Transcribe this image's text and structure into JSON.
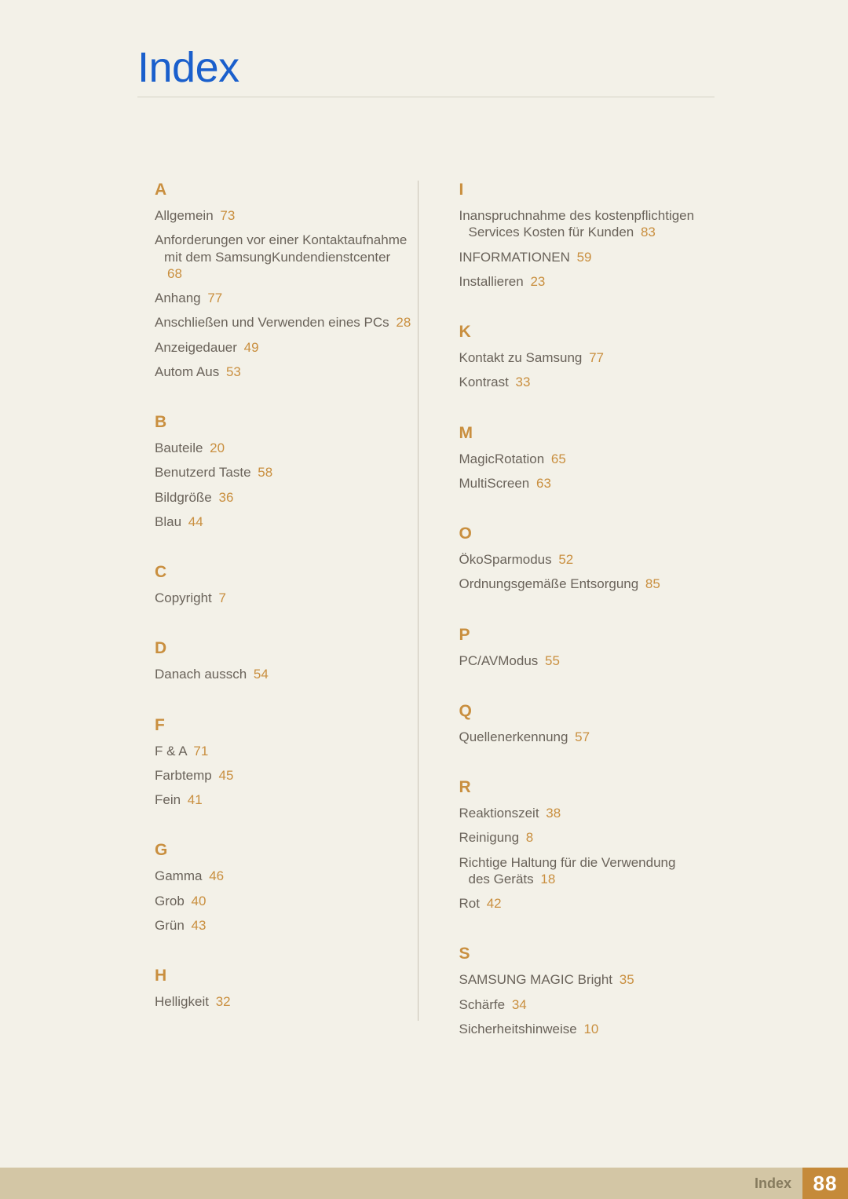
{
  "title": "Index",
  "title_color": "#1a5fcc",
  "letter_color": "#c98f3f",
  "page_ref_color": "#c98f3f",
  "body_text_color": "#6a635a",
  "background_color": "#f3f1e8",
  "rule_color": "#d6d2c5",
  "footer": {
    "label": "Index",
    "page": "88",
    "bar_color": "#d3c6a5",
    "box_color": "#c58a3a"
  },
  "columns": {
    "left": [
      {
        "letter": "A",
        "entries": [
          {
            "text": "Allgemein",
            "page": "73"
          },
          {
            "text": "Anforderungen vor einer Kontaktaufnahme mit dem SamsungKundendienstcenter",
            "page": "68",
            "hanging": true
          },
          {
            "text": "Anhang",
            "page": "77"
          },
          {
            "text": "Anschließen und Verwenden eines PCs",
            "page": "28"
          },
          {
            "text": "Anzeigedauer",
            "page": "49"
          },
          {
            "text": "Autom Aus",
            "page": "53"
          }
        ]
      },
      {
        "letter": "B",
        "entries": [
          {
            "text": "Bauteile",
            "page": "20"
          },
          {
            "text": "Benutzerd Taste",
            "page": "58"
          },
          {
            "text": "Bildgröße",
            "page": "36"
          },
          {
            "text": "Blau",
            "page": "44"
          }
        ]
      },
      {
        "letter": "C",
        "entries": [
          {
            "text": "Copyright",
            "page": "7"
          }
        ]
      },
      {
        "letter": "D",
        "entries": [
          {
            "text": "Danach aussch",
            "page": "54"
          }
        ]
      },
      {
        "letter": "F",
        "entries": [
          {
            "text": "F & A",
            "page": "71"
          },
          {
            "text": "Farbtemp",
            "page": "45"
          },
          {
            "text": "Fein",
            "page": "41"
          }
        ]
      },
      {
        "letter": "G",
        "entries": [
          {
            "text": "Gamma",
            "page": "46"
          },
          {
            "text": "Grob",
            "page": "40"
          },
          {
            "text": "Grün",
            "page": "43"
          }
        ]
      },
      {
        "letter": "H",
        "entries": [
          {
            "text": "Helligkeit",
            "page": "32"
          }
        ]
      }
    ],
    "right": [
      {
        "letter": "I",
        "entries": [
          {
            "text": "Inanspruchnahme des kostenpflichtigen Services Kosten für Kunden",
            "page": "83",
            "hanging": true
          },
          {
            "text": "INFORMATIONEN",
            "page": "59"
          },
          {
            "text": "Installieren",
            "page": "23"
          }
        ]
      },
      {
        "letter": "K",
        "entries": [
          {
            "text": "Kontakt zu Samsung",
            "page": "77"
          },
          {
            "text": "Kontrast",
            "page": "33"
          }
        ]
      },
      {
        "letter": "M",
        "entries": [
          {
            "text": "MagicRotation",
            "page": "65"
          },
          {
            "text": "MultiScreen",
            "page": "63"
          }
        ]
      },
      {
        "letter": "O",
        "entries": [
          {
            "text": "ÖkoSparmodus",
            "page": "52"
          },
          {
            "text": "Ordnungsgemäße Entsorgung",
            "page": "85"
          }
        ]
      },
      {
        "letter": "P",
        "entries": [
          {
            "text": "PC/AVModus",
            "page": "55"
          }
        ]
      },
      {
        "letter": "Q",
        "entries": [
          {
            "text": "Quellenerkennung",
            "page": "57"
          }
        ]
      },
      {
        "letter": "R",
        "entries": [
          {
            "text": "Reaktionszeit",
            "page": "38"
          },
          {
            "text": "Reinigung",
            "page": "8"
          },
          {
            "text": "Richtige Haltung für die Verwendung des Geräts",
            "page": "18",
            "hanging": true
          },
          {
            "text": "Rot",
            "page": "42"
          }
        ]
      },
      {
        "letter": "S",
        "entries": [
          {
            "text": "SAMSUNG MAGIC Bright",
            "page": "35"
          },
          {
            "text": "Schärfe",
            "page": "34"
          },
          {
            "text": "Sicherheitshinweise",
            "page": "10"
          }
        ]
      }
    ]
  }
}
